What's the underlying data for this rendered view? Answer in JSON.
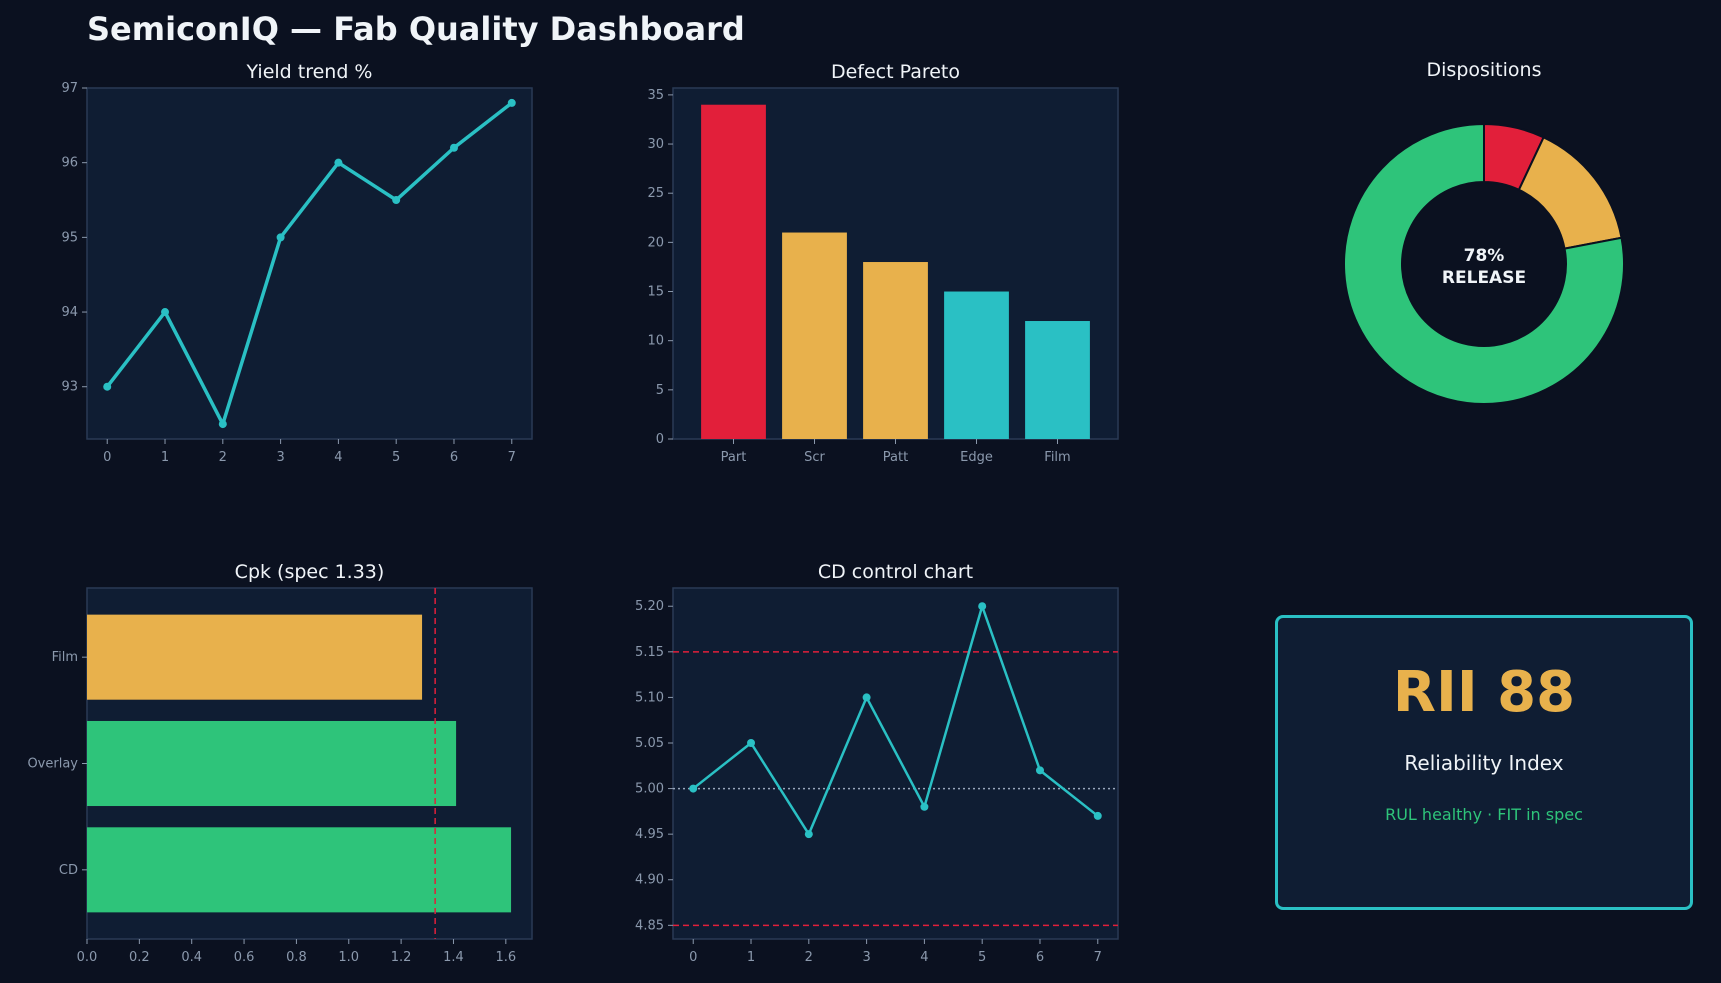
{
  "dashboard": {
    "title": "SemiconIQ — Fab Quality Dashboard"
  },
  "colors": {
    "background": "#0b1120",
    "panel": "#0f1d33",
    "frame": "#2a3a55",
    "teal": "#2ac0c4",
    "red": "#e21f3a",
    "amber": "#e8b14c",
    "green": "#2ec47a"
  },
  "chart_data": [
    {
      "id": "yield",
      "type": "line",
      "title": "Yield trend %",
      "x": [
        0,
        1,
        2,
        3,
        4,
        5,
        6,
        7
      ],
      "y": [
        93.0,
        94.0,
        92.5,
        95.0,
        96.0,
        95.5,
        96.2,
        96.8
      ],
      "xlim": [
        -0.35,
        7.35
      ],
      "ylim": [
        92.3,
        97.0
      ],
      "xticks": [
        0,
        1,
        2,
        3,
        4,
        5,
        6,
        7
      ],
      "yticks": [
        93,
        94,
        95,
        96,
        97
      ],
      "color": "#2ac0c4",
      "grid": false
    },
    {
      "id": "pareto",
      "type": "bar",
      "title": "Defect Pareto",
      "categories": [
        "Part",
        "Scr",
        "Patt",
        "Edge",
        "Film"
      ],
      "values": [
        34,
        21,
        18,
        15,
        12
      ],
      "colors": [
        "#e21f3a",
        "#e8b14c",
        "#e8b14c",
        "#2ac0c4",
        "#2ac0c4"
      ],
      "ylim": [
        0,
        35.7
      ],
      "yticks": [
        0,
        5,
        10,
        15,
        20,
        25,
        30,
        35
      ],
      "grid": false
    },
    {
      "id": "dispositions",
      "type": "pie",
      "title": "Dispositions",
      "slices": [
        {
          "value": 7,
          "color": "#e21f3a"
        },
        {
          "value": 15,
          "color": "#e8b14c"
        },
        {
          "value": 78,
          "color": "#2ec47a"
        }
      ],
      "center_lines": [
        "78%",
        "RELEASE"
      ],
      "donut": true
    },
    {
      "id": "cpk",
      "type": "bar",
      "orientation": "horizontal",
      "title": "Cpk (spec 1.33)",
      "categories": [
        "CD",
        "Overlay",
        "Film"
      ],
      "values": [
        1.62,
        1.41,
        1.28
      ],
      "colors": [
        "#2ec47a",
        "#2ec47a",
        "#e8b14c"
      ],
      "xlim": [
        0,
        1.7
      ],
      "xticks": [
        "0.0",
        "0.2",
        "0.4",
        "0.6",
        "0.8",
        "1.0",
        "1.2",
        "1.4",
        "1.6"
      ],
      "spec_line": 1.33,
      "spec_color": "#e21f3a",
      "grid": false
    },
    {
      "id": "cd",
      "type": "line",
      "title": "CD control chart",
      "x": [
        0,
        1,
        2,
        3,
        4,
        5,
        6,
        7
      ],
      "y": [
        5.0,
        5.05,
        4.95,
        5.1,
        4.98,
        5.2,
        5.02,
        4.97
      ],
      "xlim": [
        -0.35,
        7.35
      ],
      "ylim": [
        4.835,
        5.22
      ],
      "xticks": [
        0,
        1,
        2,
        3,
        4,
        5,
        6,
        7
      ],
      "yticks": [
        "4.85",
        "4.90",
        "4.95",
        "5.00",
        "5.05",
        "5.10",
        "5.15",
        "5.20"
      ],
      "ucl": 5.15,
      "lcl": 4.85,
      "center": 5.0,
      "color": "#2ac0c4",
      "grid": false
    }
  ],
  "kpi": {
    "value": "RII 88",
    "label": "Reliability Index",
    "sub": "RUL healthy · FIT in spec"
  }
}
